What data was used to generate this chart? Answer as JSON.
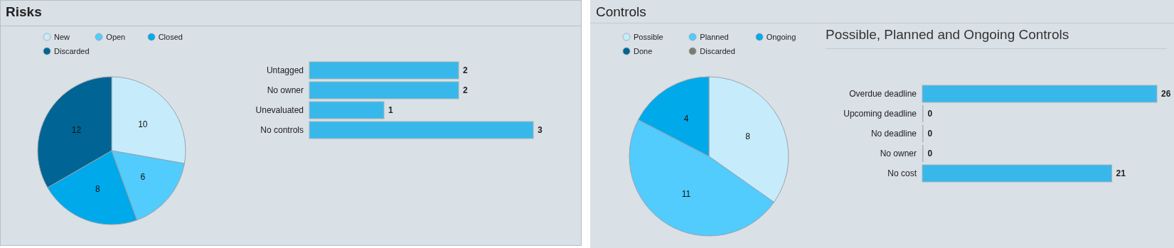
{
  "chart_data": [
    {
      "type": "pie",
      "title": "Risks",
      "categories": [
        "New",
        "Open",
        "Closed",
        "Discarded"
      ],
      "values": [
        10,
        6,
        8,
        12
      ],
      "colors": [
        "#c6ecfc",
        "#52cbfd",
        "#00a9ea",
        "#006494"
      ],
      "data_labels": true,
      "legend": "top"
    },
    {
      "type": "bar",
      "orientation": "horizontal",
      "categories": [
        "Untagged",
        "No owner",
        "Unevaluated",
        "No controls"
      ],
      "values": [
        2,
        2,
        1,
        3
      ],
      "color": "#38b8ea",
      "data_labels": true
    },
    {
      "type": "pie",
      "title": "Controls",
      "categories": [
        "Possible",
        "Planned",
        "Ongoing",
        "Done",
        "Discarded"
      ],
      "values": [
        8,
        11,
        4,
        0,
        0
      ],
      "colors": [
        "#c6ecfc",
        "#52cbfd",
        "#00a9ea",
        "#006494",
        "#7a7a6e"
      ],
      "value_labels": [
        "8",
        "11",
        "4",
        null,
        null
      ],
      "legend": "top"
    },
    {
      "type": "bar",
      "title": "Possible, Planned and Ongoing Controls",
      "orientation": "horizontal",
      "categories": [
        "Overdue deadline",
        "Upcoming deadline",
        "No deadline",
        "No owner",
        "No cost"
      ],
      "values": [
        26,
        0,
        0,
        0,
        21
      ],
      "color": "#38b8ea",
      "data_labels": true
    }
  ]
}
